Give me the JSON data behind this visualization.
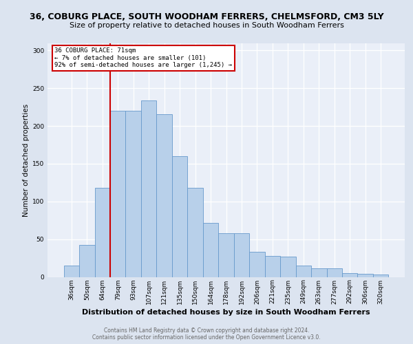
{
  "title1": "36, COBURG PLACE, SOUTH WOODHAM FERRERS, CHELMSFORD, CM3 5LY",
  "title2": "Size of property relative to detached houses in South Woodham Ferrers",
  "xlabel": "Distribution of detached houses by size in South Woodham Ferrers",
  "ylabel": "Number of detached properties",
  "footnote1": "Contains HM Land Registry data © Crown copyright and database right 2024.",
  "footnote2": "Contains public sector information licensed under the Open Government Licence v3.0.",
  "bar_labels": [
    "36sqm",
    "50sqm",
    "64sqm",
    "79sqm",
    "93sqm",
    "107sqm",
    "121sqm",
    "135sqm",
    "150sqm",
    "164sqm",
    "178sqm",
    "192sqm",
    "206sqm",
    "221sqm",
    "235sqm",
    "249sqm",
    "263sqm",
    "277sqm",
    "292sqm",
    "306sqm",
    "320sqm"
  ],
  "bar_values": [
    15,
    42,
    118,
    220,
    220,
    234,
    216,
    160,
    118,
    72,
    58,
    58,
    33,
    28,
    27,
    15,
    11,
    11,
    5,
    4,
    3
  ],
  "bar_color": "#b8d0ea",
  "bar_edge_color": "#6699cc",
  "annotation_title": "36 COBURG PLACE: 71sqm",
  "annotation_line1": "← 7% of detached houses are smaller (101)",
  "annotation_line2": "92% of semi-detached houses are larger (1,245) →",
  "annotation_box_bg": "#ffffff",
  "annotation_box_edge": "#cc0000",
  "vline_color": "#cc0000",
  "vline_x": 2.5,
  "ylim": [
    0,
    310
  ],
  "yticks": [
    0,
    50,
    100,
    150,
    200,
    250,
    300
  ],
  "background_color": "#dce4f0",
  "plot_bg_color": "#eaeff8",
  "grid_color": "#ffffff",
  "title1_fontsize": 9,
  "title2_fontsize": 8,
  "xlabel_fontsize": 8,
  "ylabel_fontsize": 7.5,
  "tick_fontsize": 6.5,
  "footnote_fontsize": 5.5
}
